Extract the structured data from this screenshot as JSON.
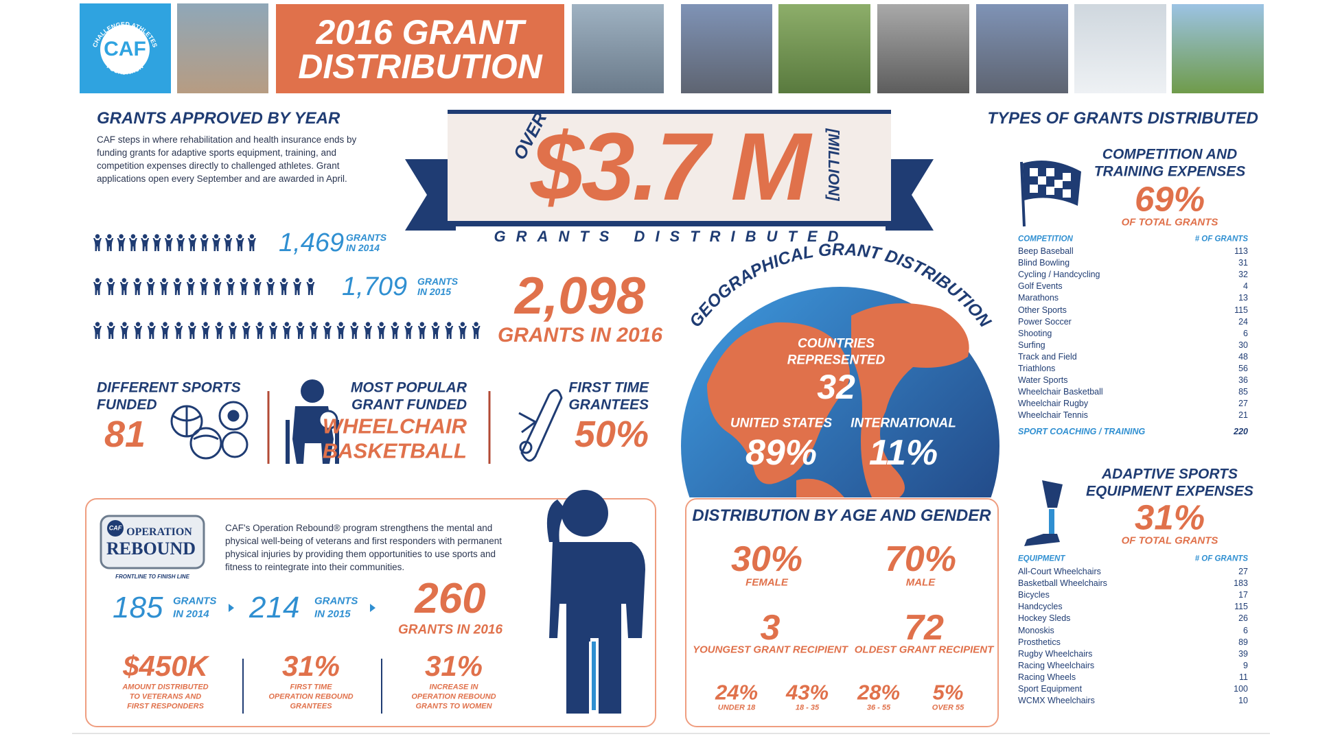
{
  "header": {
    "logo": {
      "name": "CAF",
      "arc_top": "CHALLENGED ATHLETES",
      "arc_bottom": "FOUNDATION"
    },
    "title": [
      "2016 GRANT",
      "DISTRIBUTION"
    ]
  },
  "grants_by_year": {
    "title": "GRANTS APPROVED BY YEAR",
    "description": "CAF steps in where rehabilitation and health insurance ends by funding grants for adaptive sports equipment, training, and competition expenses directly to challenged athletes. Grant applications open every September and are awarded in April.",
    "rows": [
      {
        "value": "1,469",
        "label": [
          "GRANTS",
          "IN 2014"
        ]
      },
      {
        "value": "1,709",
        "label": [
          "GRANTS",
          "IN 2015"
        ]
      }
    ],
    "current": {
      "value": "2,098",
      "label": "GRANTS IN 2016"
    }
  },
  "total": {
    "prefix": "OVER",
    "amount": "$3.7 M",
    "unit": "[MILLION]",
    "caption": "GRANTS DISTRIBUTED"
  },
  "highlights": [
    {
      "label": [
        "DIFFERENT SPORTS",
        "FUNDED"
      ],
      "value": "81"
    },
    {
      "label": [
        "MOST POPULAR",
        "GRANT FUNDED"
      ],
      "value": [
        "WHEELCHAIR",
        "BASKETBALL"
      ]
    },
    {
      "label": [
        "FIRST TIME",
        "GRANTEES"
      ],
      "value": "50%"
    }
  ],
  "geography": {
    "title": "GEOGRAPHICAL GRANT DISTRIBUTION",
    "countries": {
      "label": [
        "COUNTRIES",
        "REPRESENTED"
      ],
      "value": "32"
    },
    "united_states": {
      "label": "UNITED STATES",
      "value": "89%"
    },
    "international": {
      "label": "INTERNATIONAL",
      "value": "11%"
    }
  },
  "age_gender": {
    "title": "DISTRIBUTION BY AGE AND GENDER",
    "gender": [
      {
        "value": "30%",
        "label": "FEMALE"
      },
      {
        "value": "70%",
        "label": "MALE"
      }
    ],
    "age_extremes": [
      {
        "value": "3",
        "label": "YOUNGEST GRANT RECIPIENT"
      },
      {
        "value": "72",
        "label": "OLDEST GRANT RECIPIENT"
      }
    ],
    "age_groups": [
      {
        "value": "24%",
        "label": "UNDER 18"
      },
      {
        "value": "43%",
        "label": "18 - 35"
      },
      {
        "value": "28%",
        "label": "36 - 55"
      },
      {
        "value": "5%",
        "label": "OVER 55"
      }
    ]
  },
  "operation_rebound": {
    "logo": {
      "badge": "CAF",
      "top": "OPERATION",
      "bottom": "REBOUND"
    },
    "tagline": "FRONTLINE TO FINISH LINE",
    "description": "CAF's Operation Rebound® program strengthens the mental and physical well-being of veterans and first responders with permanent physical injuries by providing them opportunities to use sports and fitness to reintegrate into their communities.",
    "years": [
      {
        "value": "185",
        "label": [
          "GRANTS",
          "IN 2014"
        ]
      },
      {
        "value": "214",
        "label": [
          "GRANTS",
          "IN 2015"
        ]
      }
    ],
    "current": {
      "value": "260",
      "label": "GRANTS IN 2016"
    },
    "stats": [
      {
        "value": "$450K",
        "label": [
          "AMOUNT DISTRIBUTED",
          "TO VETERANS AND",
          "FIRST RESPONDERS"
        ]
      },
      {
        "value": "31%",
        "label": [
          "FIRST TIME",
          "OPERATION REBOUND",
          "GRANTEES"
        ]
      },
      {
        "value": "31%",
        "label": [
          "INCREASE IN",
          "OPERATION REBOUND",
          "GRANTS TO WOMEN"
        ]
      }
    ]
  },
  "types": {
    "title": "TYPES OF GRANTS DISTRIBUTED",
    "sections": [
      {
        "heading": [
          "COMPETITION AND",
          "TRAINING EXPENSES"
        ],
        "percent": "69%",
        "percent_label": "OF TOTAL GRANTS",
        "columns": [
          "COMPETITION",
          "# OF GRANTS"
        ],
        "rows": [
          [
            "Beep Baseball",
            113
          ],
          [
            "Blind Bowling",
            31
          ],
          [
            "Cycling / Handcycling",
            32
          ],
          [
            "Golf Events",
            4
          ],
          [
            "Marathons",
            13
          ],
          [
            "Other Sports",
            115
          ],
          [
            "Power Soccer",
            24
          ],
          [
            "Shooting",
            6
          ],
          [
            "Surfing",
            30
          ],
          [
            "Track and Field",
            48
          ],
          [
            "Triathlons",
            56
          ],
          [
            "Water Sports",
            36
          ],
          [
            "Wheelchair Basketball",
            85
          ],
          [
            "Wheelchair Rugby",
            27
          ],
          [
            "Wheelchair Tennis",
            21
          ]
        ],
        "footer": [
          "SPORT COACHING / TRAINING",
          220
        ]
      },
      {
        "heading": [
          "ADAPTIVE SPORTS",
          "EQUIPMENT EXPENSES"
        ],
        "percent": "31%",
        "percent_label": "OF TOTAL GRANTS",
        "columns": [
          "EQUIPMENT",
          "# OF GRANTS"
        ],
        "rows": [
          [
            "All-Court Wheelchairs",
            27
          ],
          [
            "Basketball Wheelchairs",
            183
          ],
          [
            "Bicycles",
            17
          ],
          [
            "Handcycles",
            115
          ],
          [
            "Hockey Sleds",
            26
          ],
          [
            "Monoskis",
            6
          ],
          [
            "Prosthetics",
            89
          ],
          [
            "Rugby Wheelchairs",
            39
          ],
          [
            "Racing Wheelchairs",
            9
          ],
          [
            "Racing Wheels",
            11
          ],
          [
            "Sport Equipment",
            100
          ],
          [
            "WCMX Wheelchairs",
            10
          ]
        ]
      }
    ]
  }
}
